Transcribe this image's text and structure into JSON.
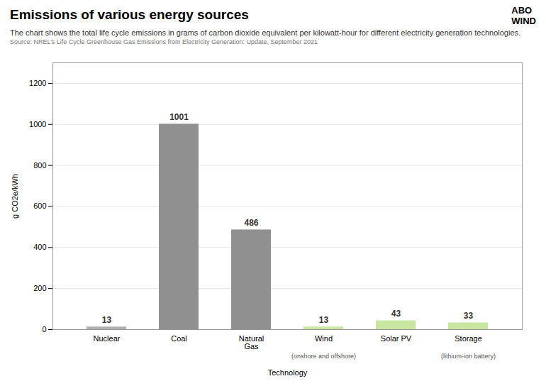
{
  "chart_data": {
    "type": "bar",
    "title": "Emissions of various energy sources",
    "subtitle": "The chart shows the total life cycle emissions in grams of carbon dioxide equivalent per kilowatt-hour for different electricity generation technologies.",
    "source": "Source: NREL’s Life Cycle Greenhouse Gas Emissions from Electricity Generation: Update, September 2021",
    "logo": [
      "ABO",
      "WIND"
    ],
    "categories": [
      "Nuclear",
      "Coal",
      "Natural\nGas",
      "Wind",
      "Solar PV",
      "Storage"
    ],
    "values": [
      13,
      1001,
      486,
      13,
      43,
      33
    ],
    "colors": [
      "#b0b0b0",
      "#909090",
      "#909090",
      "#c8e6a0",
      "#c8e6a0",
      "#c8e6a0"
    ],
    "annotations": [
      {
        "x": "Wind",
        "text": "(onshore and offshore)"
      },
      {
        "x": "Storage",
        "text": "(lithium-ion battery)"
      }
    ],
    "xlabel": "Technology",
    "ylabel": "g CO2e/kWh",
    "ylim": [
      0,
      1300
    ],
    "yticks": [
      0,
      200,
      400,
      600,
      800,
      1000,
      1200
    ],
    "grid": true,
    "data_labels": true
  }
}
